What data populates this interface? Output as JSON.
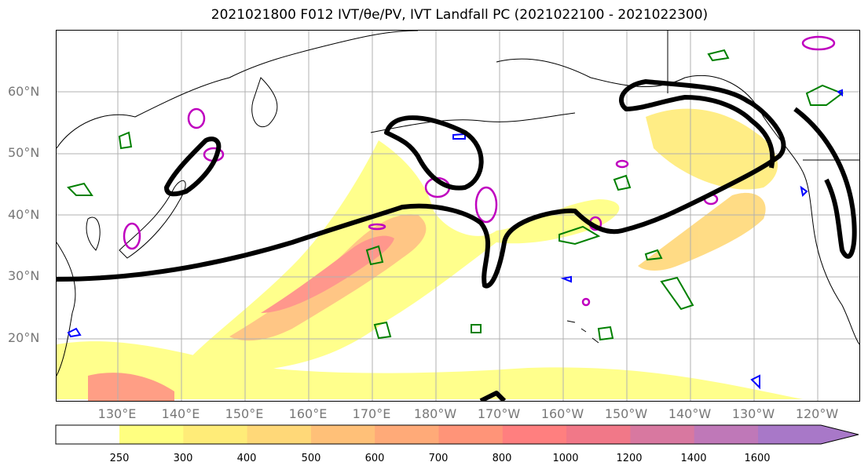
{
  "title": "2021021800 F012 IVT/θe/PV, IVT Landfall PC (2021022100 - 2021022300)",
  "lat_labels": [
    "60°N",
    "50°N",
    "40°N",
    "30°N",
    "20°N"
  ],
  "lon_labels": [
    "130°E",
    "140°E",
    "150°E",
    "160°E",
    "170°E",
    "180°W",
    "170°W",
    "160°W",
    "150°W",
    "140°W",
    "130°W",
    "120°W"
  ],
  "colorbar": {
    "ticks": [
      "250",
      "300",
      "400",
      "500",
      "600",
      "700",
      "800",
      "1000",
      "1200",
      "1400",
      "1600"
    ],
    "colors": [
      "#ffff80",
      "#ffec78",
      "#ffd878",
      "#ffc078",
      "#ffaa78",
      "#ff9478",
      "#ff7f7f",
      "#f17888",
      "#d878a0",
      "#bf78b8",
      "#a878c8"
    ]
  },
  "colors": {
    "black_contour": "#000000",
    "green_contour": "#008000",
    "magenta_contour": "#bf00bf",
    "blue_contour": "#0000ff",
    "gridline": "#b0b0b0",
    "coastline": "#000000"
  }
}
